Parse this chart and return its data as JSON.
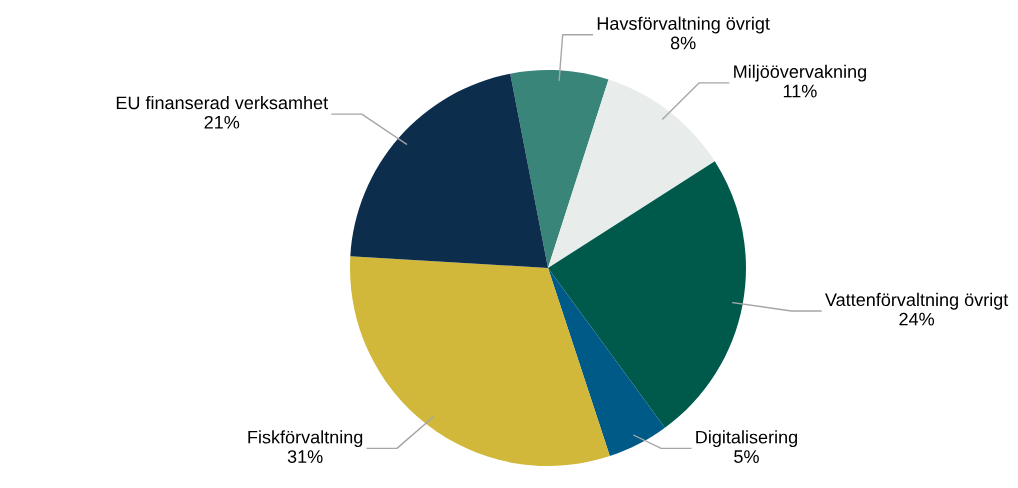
{
  "chart_data": {
    "type": "pie",
    "categories": [
      "Havsförvaltning övrigt",
      "Miljöövervakning",
      "Vattenförvaltning övrigt",
      "Digitalisering",
      "Fiskförvaltning",
      "EU finanserad verksamhet"
    ],
    "values": [
      8,
      11,
      24,
      5,
      31,
      21
    ],
    "colors": [
      "#3a857a",
      "#e8eceb",
      "#005a4c",
      "#005a87",
      "#d1b73a",
      "#0c2d4c"
    ],
    "value_labels": [
      "8%",
      "11%",
      "24%",
      "5%",
      "31%",
      "21%"
    ],
    "legend": false
  }
}
